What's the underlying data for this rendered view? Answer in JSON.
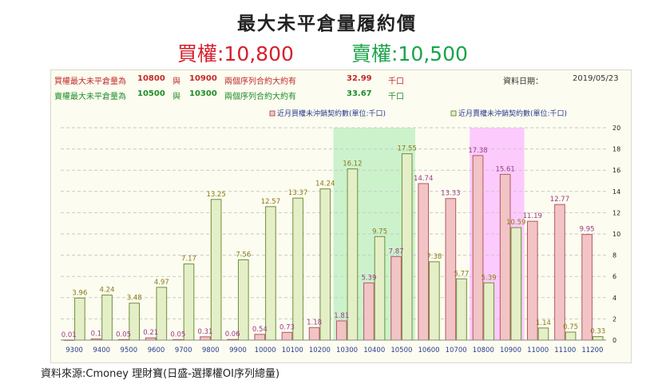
{
  "title": "最大未平倉量履約價",
  "call_headline": "買權:10,800",
  "put_headline": "賣權:10,500",
  "info": {
    "call_row": {
      "label": "買權最大未平倉量為",
      "strike_a": "10800",
      "conj": "與",
      "strike_b": "10900",
      "desc": "兩個序列合約大約有",
      "value": "32.99",
      "unit": "千口"
    },
    "put_row": {
      "label": "賣權最大未平倉量為",
      "strike_a": "10500",
      "conj": "與",
      "strike_b": "10300",
      "desc": "兩個序列合約大約有",
      "value": "33.67",
      "unit": "千口"
    },
    "date_label": "資料日期：",
    "date_value": "2019/05/23"
  },
  "source": "資料來源:Cmoney 理財寶(日盛-選擇權OI序列總量)",
  "colors": {
    "call_fill": "#f2c4c6",
    "call_stroke": "#b05a62",
    "put_fill": "#e4efc8",
    "put_stroke": "#6f8f38",
    "call_label": "#9c3a86",
    "put_label": "#8a7a10",
    "green_highlight": "#ccf2cc",
    "pink_highlight": "#fccafc",
    "axis_label": "#2a3c8f"
  },
  "chart_data": {
    "type": "bar",
    "categories": [
      "9300",
      "9400",
      "9500",
      "9600",
      "9700",
      "9800",
      "9900",
      "10000",
      "10100",
      "10200",
      "10300",
      "10400",
      "10500",
      "10600",
      "10700",
      "10800",
      "10900",
      "11000",
      "11100",
      "11200"
    ],
    "series": [
      {
        "name": "近月買權未沖銷契約數(單位:千口)",
        "values": [
          0.01,
          0.1,
          0.05,
          0.21,
          0.05,
          0.31,
          0.06,
          0.54,
          0.73,
          1.18,
          1.81,
          5.39,
          7.87,
          14.74,
          13.33,
          17.38,
          15.61,
          11.19,
          12.77,
          9.95
        ]
      },
      {
        "name": "近月賣權未沖銷契約數(單位:千口)",
        "values": [
          3.96,
          4.24,
          3.48,
          4.97,
          7.17,
          13.25,
          7.56,
          12.57,
          13.37,
          14.24,
          16.12,
          9.75,
          17.55,
          7.38,
          5.77,
          5.39,
          10.59,
          1.14,
          0.75,
          0.33
        ]
      }
    ],
    "highlight_put": [
      "10300",
      "10500"
    ],
    "highlight_call": [
      "10800",
      "10900"
    ],
    "ylim": [
      0,
      20
    ],
    "yticks": [
      0,
      2,
      4,
      6,
      8,
      10,
      12,
      14,
      16,
      18,
      20
    ],
    "grid": true,
    "legend_position": "top"
  }
}
